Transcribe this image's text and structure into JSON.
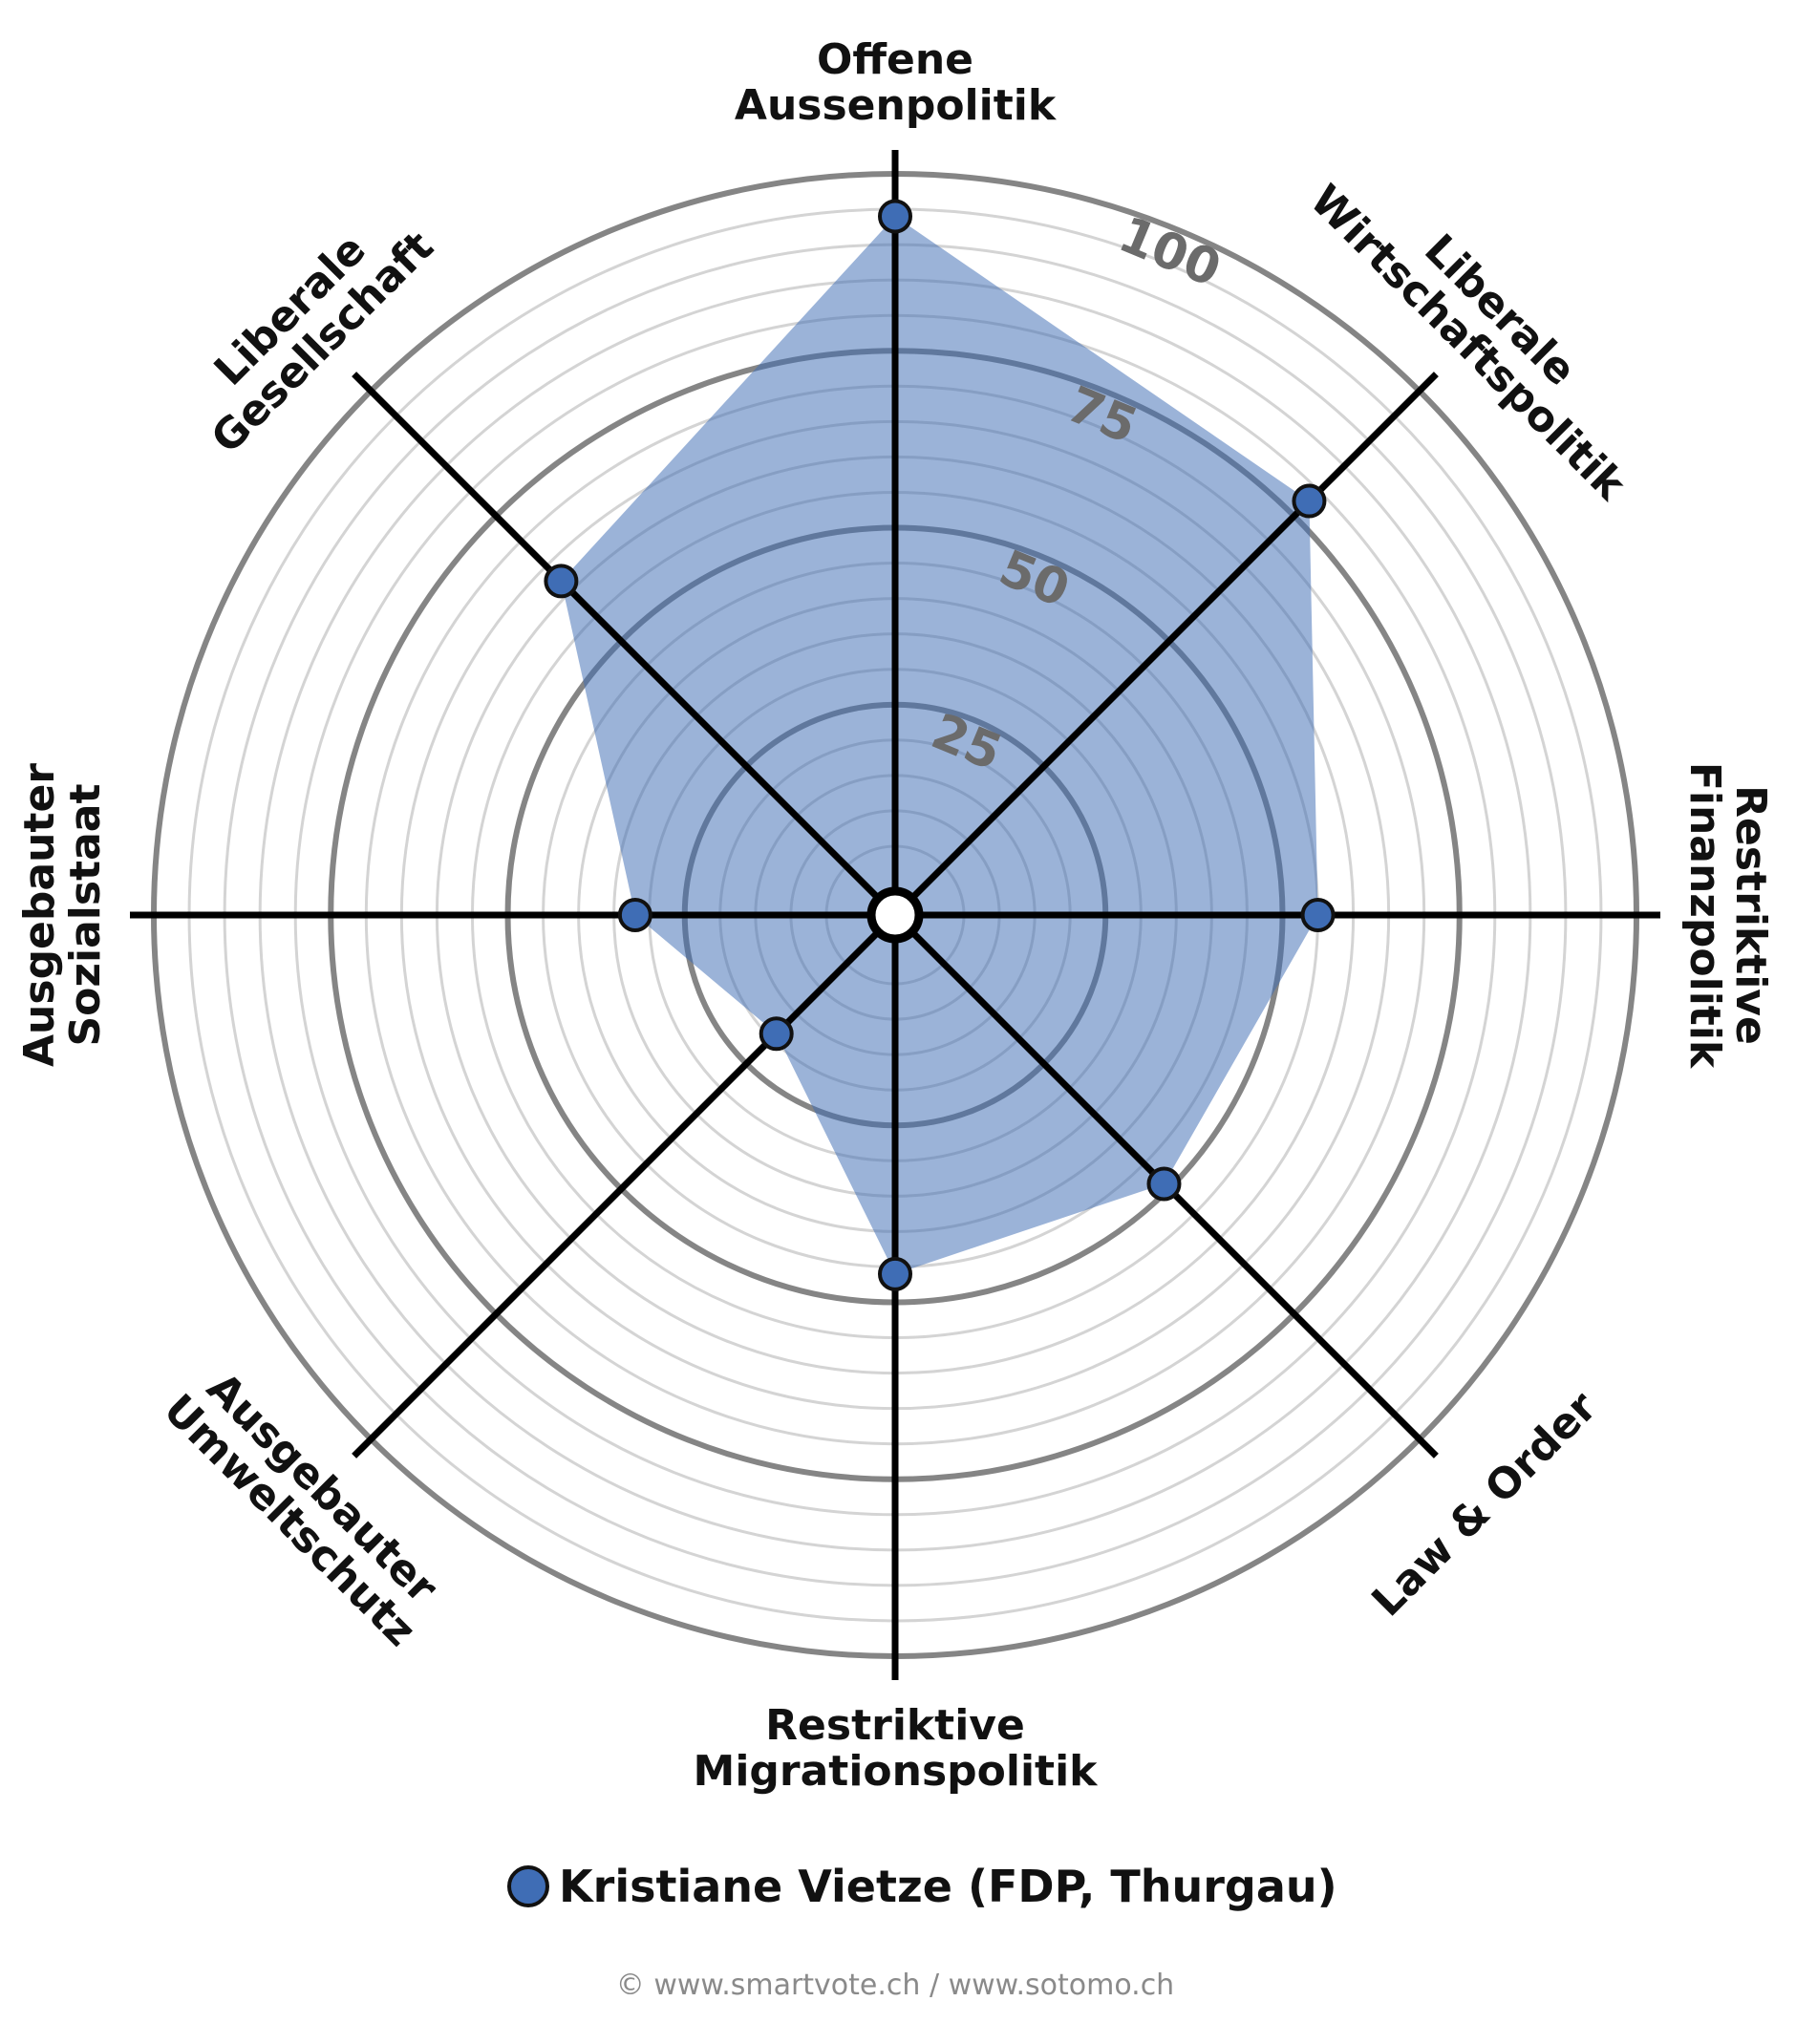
{
  "chart_data": {
    "type": "radar",
    "categories": [
      "Offene\nAussenpolitik",
      "Liberale\nWirtschaftspolitik",
      "Restriktive\nFinanzpolitik",
      "Law & Order",
      "Restriktive\nMigrationspolitik",
      "Ausgebauter\nUmweltschutz",
      "Ausgebauter\nSozialstaat",
      "Liberale\nGesellschaft"
    ],
    "series": [
      {
        "name": "Kristiane Vietze (FDP, Thurgau)",
        "color": "#3f6db5",
        "values": [
          94,
          78,
          55,
          49,
          46,
          19,
          32,
          62
        ]
      }
    ],
    "rlim": [
      0,
      100
    ],
    "rticks": [
      25,
      50,
      75,
      100
    ],
    "minor_grid_step": 5,
    "source": "© www.smartvote.ch / www.sotomo.ch"
  }
}
